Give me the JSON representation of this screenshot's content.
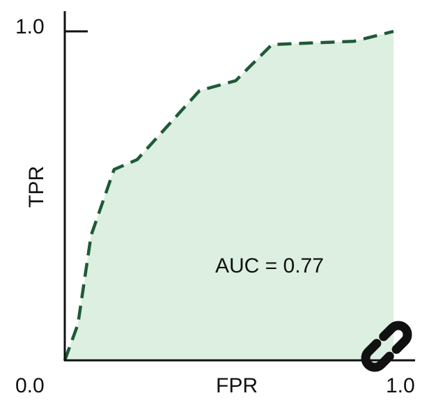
{
  "chart_data": {
    "type": "area",
    "xlabel": "FPR",
    "ylabel": "TPR",
    "xlim": [
      0.0,
      1.0
    ],
    "ylim": [
      0.0,
      1.0
    ],
    "tick_labels": {
      "x_start": "0.0",
      "x_end": "1.0",
      "y_top": "1.0"
    },
    "annotation": "AUC = 0.77",
    "grid": false,
    "series": [
      {
        "x": [
          0.0,
          0.04,
          0.08,
          0.15,
          0.22,
          0.41,
          0.52,
          0.63,
          0.88,
          1.0
        ],
        "y": [
          0.0,
          0.11,
          0.38,
          0.58,
          0.61,
          0.82,
          0.85,
          0.96,
          0.97,
          1.0
        ]
      }
    ],
    "colors": {
      "line": "#1e5a36",
      "area": "#dcefe0",
      "axis": "#111111"
    }
  },
  "icons": {
    "overlay": "link-icon"
  }
}
